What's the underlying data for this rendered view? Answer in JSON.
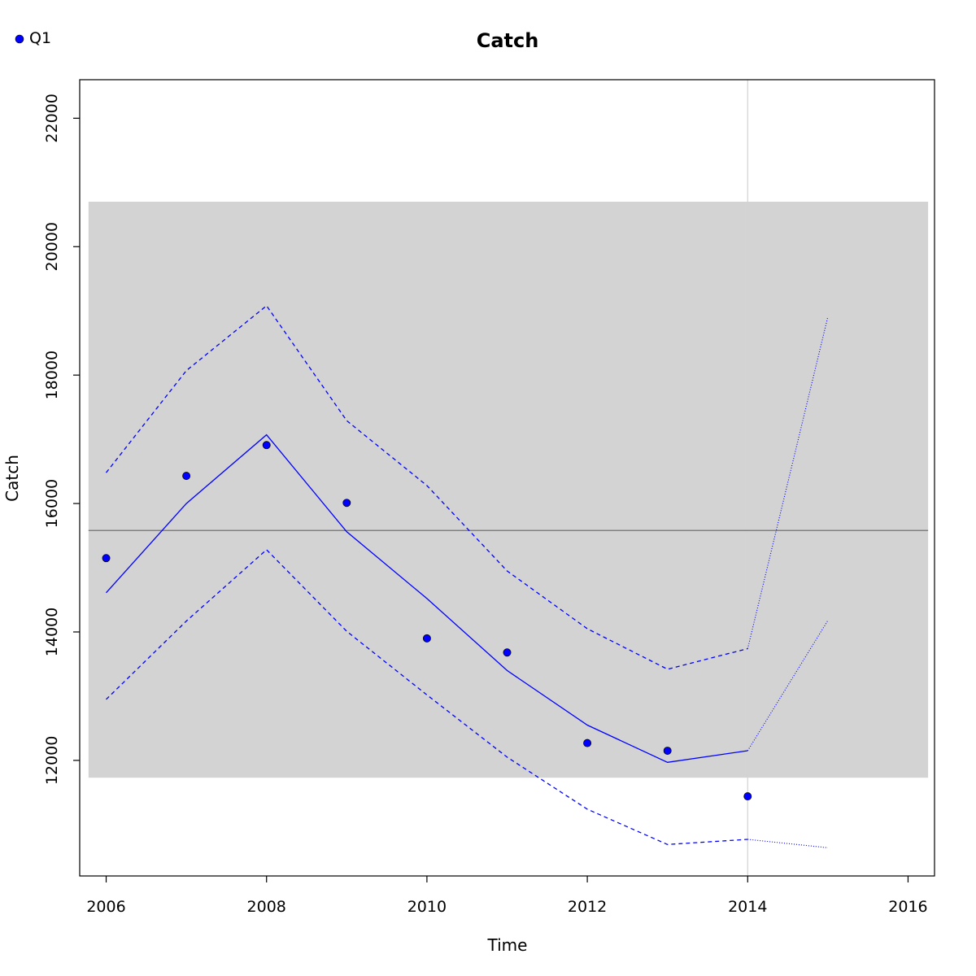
{
  "chart_data": {
    "type": "line",
    "title": "Catch",
    "xlabel": "Time",
    "ylabel": "Catch",
    "xlim": [
      2005.67,
      2016.33
    ],
    "ylim": [
      10200,
      22600
    ],
    "x_ticks": [
      "2006",
      "2008",
      "2010",
      "2012",
      "2014",
      "2016"
    ],
    "y_ticks": [
      "12000",
      "14000",
      "16000",
      "18000",
      "20000",
      "22000"
    ],
    "grid": false,
    "legend": {
      "placement": "top-left",
      "entries": [
        "Q1"
      ]
    },
    "colors": {
      "series": "#0000ff",
      "band": "#d3d3d3",
      "mean_line": "#808080",
      "vline": "#d3d3d3"
    },
    "background_band": {
      "x_range": [
        2005.78,
        2016.25
      ],
      "y_range": [
        11730,
        20700
      ]
    },
    "mean_line": 15580,
    "vertical_line": 2014,
    "series": [
      {
        "name": "Q1",
        "style": "points",
        "x": [
          2006,
          2007,
          2008,
          2009,
          2010,
          2011,
          2012,
          2013,
          2014
        ],
        "values": [
          15150,
          16430,
          16910,
          16010,
          13900,
          13680,
          12270,
          12150,
          11440
        ]
      },
      {
        "style": "solid",
        "x": [
          2006,
          2007,
          2008,
          2009,
          2010,
          2011,
          2012,
          2013,
          2014
        ],
        "values": [
          14610,
          16000,
          17070,
          15560,
          14520,
          13400,
          12550,
          11970,
          12150
        ]
      },
      {
        "style": "dashed",
        "x": [
          2006,
          2007,
          2008,
          2009,
          2010,
          2011,
          2012,
          2013,
          2014
        ],
        "values": [
          16480,
          18070,
          19080,
          17290,
          16280,
          14950,
          14050,
          13420,
          13740
        ]
      },
      {
        "style": "dashed",
        "x": [
          2006,
          2007,
          2008,
          2009,
          2010,
          2011,
          2012,
          2013,
          2014
        ],
        "values": [
          12950,
          14170,
          15280,
          14010,
          13020,
          12050,
          11240,
          10690,
          10770
        ]
      },
      {
        "style": "dotted",
        "x": [
          2014,
          2015
        ],
        "values": [
          12150,
          14180
        ]
      },
      {
        "style": "dotted",
        "x": [
          2014,
          2015
        ],
        "values": [
          13740,
          18910
        ]
      },
      {
        "style": "dotted",
        "x": [
          2014,
          2015
        ],
        "values": [
          10770,
          10640
        ]
      }
    ]
  }
}
